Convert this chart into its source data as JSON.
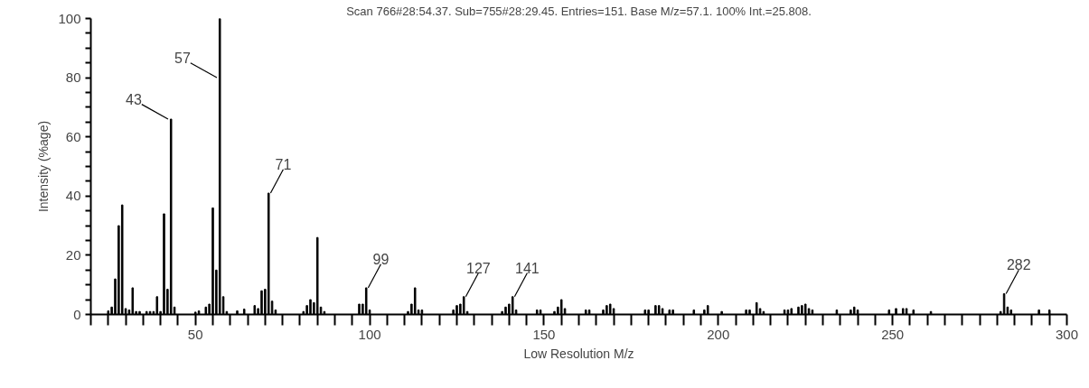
{
  "chart_data": {
    "type": "bar",
    "title": "Scan 766#28:54.37. Sub=755#28:29.45. Entries=151. Base M/z=57.1. 100% Int.=25.808.",
    "xlabel": "Low Resolution M/z",
    "ylabel": "Intensity (%age)",
    "x": [
      25,
      26,
      27,
      28,
      29,
      30,
      31,
      32,
      33,
      34,
      36,
      37,
      38,
      39,
      40,
      41,
      42,
      43,
      44,
      50,
      51,
      53,
      54,
      55,
      56,
      57,
      58,
      59,
      62,
      64,
      67,
      68,
      69,
      70,
      71,
      72,
      73,
      81,
      82,
      83,
      84,
      85,
      86,
      87,
      97,
      98,
      99,
      100,
      111,
      112,
      113,
      114,
      115,
      124,
      125,
      126,
      127,
      128,
      138,
      139,
      140,
      141,
      142,
      148,
      149,
      153,
      154,
      155,
      156,
      162,
      163,
      167,
      168,
      169,
      170,
      179,
      180,
      182,
      183,
      184,
      186,
      187,
      193,
      196,
      197,
      201,
      208,
      209,
      211,
      212,
      213,
      219,
      220,
      221,
      223,
      224,
      225,
      226,
      227,
      234,
      238,
      239,
      240,
      249,
      251,
      253,
      254,
      256,
      261,
      281,
      282,
      283,
      284,
      292,
      295
    ],
    "values": [
      1.2,
      2.5,
      12,
      30,
      37,
      2,
      1.5,
      9,
      1,
      1,
      1,
      1,
      1,
      6,
      1,
      34,
      8.5,
      66,
      2.5,
      0.8,
      1.2,
      2.5,
      3.5,
      36,
      15,
      100,
      6,
      1,
      1.2,
      1.8,
      3,
      2,
      8,
      8.5,
      41,
      4.5,
      1.5,
      1,
      3,
      5,
      4,
      26,
      2.5,
      1,
      3.5,
      3.5,
      9,
      1.5,
      1,
      3.5,
      9,
      1.5,
      1.5,
      1.5,
      3,
      3.5,
      6,
      1,
      1,
      2.5,
      3.5,
      6,
      1.5,
      1.5,
      1.5,
      1,
      2.5,
      5,
      2,
      1.5,
      1.5,
      1.5,
      3,
      3.5,
      2,
      1.5,
      1.5,
      3,
      3,
      2,
      1.5,
      1.5,
      1.5,
      1.5,
      3,
      1,
      1.5,
      1.5,
      4,
      2,
      1,
      1.5,
      1.5,
      2,
      2.5,
      3,
      3.5,
      2,
      1.5,
      1.5,
      1.5,
      2.5,
      1.5,
      1.5,
      2,
      2,
      2,
      1.5,
      1,
      1,
      7,
      2.5,
      1.5,
      1.5,
      1.5
    ],
    "color": "#000000",
    "xlim": [
      20,
      300
    ],
    "xticks": [
      {
        "value": 20,
        "label": null
      },
      {
        "value": 25,
        "label": null
      },
      {
        "value": 30,
        "label": null
      },
      {
        "value": 35,
        "label": null
      },
      {
        "value": 40,
        "label": null
      },
      {
        "value": 45,
        "label": null
      },
      50,
      {
        "value": 55,
        "label": null
      },
      {
        "value": 60,
        "label": null
      },
      {
        "value": 65,
        "label": null
      },
      {
        "value": 70,
        "label": null
      },
      {
        "value": 75,
        "label": null
      },
      {
        "value": 80,
        "label": null
      },
      {
        "value": 85,
        "label": null
      },
      {
        "value": 90,
        "label": null
      },
      {
        "value": 95,
        "label": null
      },
      100,
      {
        "value": 105,
        "label": null
      },
      {
        "value": 110,
        "label": null
      },
      {
        "value": 115,
        "label": null
      },
      {
        "value": 120,
        "label": null
      },
      {
        "value": 125,
        "label": null
      },
      {
        "value": 130,
        "label": null
      },
      {
        "value": 135,
        "label": null
      },
      {
        "value": 140,
        "label": null
      },
      {
        "value": 145,
        "label": null
      },
      150,
      {
        "value": 155,
        "label": null
      },
      {
        "value": 160,
        "label": null
      },
      {
        "value": 165,
        "label": null
      },
      {
        "value": 170,
        "label": null
      },
      {
        "value": 175,
        "label": null
      },
      {
        "value": 180,
        "label": null
      },
      {
        "value": 185,
        "label": null
      },
      {
        "value": 190,
        "label": null
      },
      {
        "value": 195,
        "label": null
      },
      200,
      {
        "value": 205,
        "label": null
      },
      {
        "value": 210,
        "label": null
      },
      {
        "value": 215,
        "label": null
      },
      {
        "value": 220,
        "label": null
      },
      {
        "value": 225,
        "label": null
      },
      {
        "value": 230,
        "label": null
      },
      {
        "value": 235,
        "label": null
      },
      {
        "value": 240,
        "label": null
      },
      {
        "value": 245,
        "label": null
      },
      250,
      {
        "value": 255,
        "label": null
      },
      {
        "value": 260,
        "label": null
      },
      {
        "value": 265,
        "label": null
      },
      {
        "value": 270,
        "label": null
      },
      {
        "value": 275,
        "label": null
      },
      {
        "value": 280,
        "label": null
      },
      {
        "value": 285,
        "label": null
      },
      {
        "value": 290,
        "label": null
      },
      {
        "value": 295,
        "label": null
      },
      300
    ],
    "ylim": [
      0,
      100
    ],
    "yticks": [
      0,
      {
        "value": 5,
        "label": null
      },
      {
        "value": 10,
        "label": null
      },
      {
        "value": 15,
        "label": null
      },
      20,
      {
        "value": 25,
        "label": null
      },
      {
        "value": 30,
        "label": null
      },
      {
        "value": 35,
        "label": null
      },
      40,
      {
        "value": 45,
        "label": null
      },
      {
        "value": 50,
        "label": null
      },
      {
        "value": 55,
        "label": null
      },
      60,
      {
        "value": 65,
        "label": null
      },
      {
        "value": 70,
        "label": null
      },
      {
        "value": 75,
        "label": null
      },
      80,
      {
        "value": 85,
        "label": null
      },
      {
        "value": 90,
        "label": null
      },
      {
        "value": 95,
        "label": null
      },
      100
    ],
    "grid": false,
    "annotations": [
      {
        "text": "43",
        "x": 43,
        "y": 66
      },
      {
        "text": "57",
        "x": 57,
        "y": 100
      },
      {
        "text": "71",
        "x": 71,
        "y": 41
      },
      {
        "text": "99",
        "x": 99,
        "y": 9
      },
      {
        "text": "127",
        "x": 127,
        "y": 6
      },
      {
        "text": "141",
        "x": 141,
        "y": 6
      },
      {
        "text": "282",
        "x": 282,
        "y": 7
      }
    ]
  }
}
